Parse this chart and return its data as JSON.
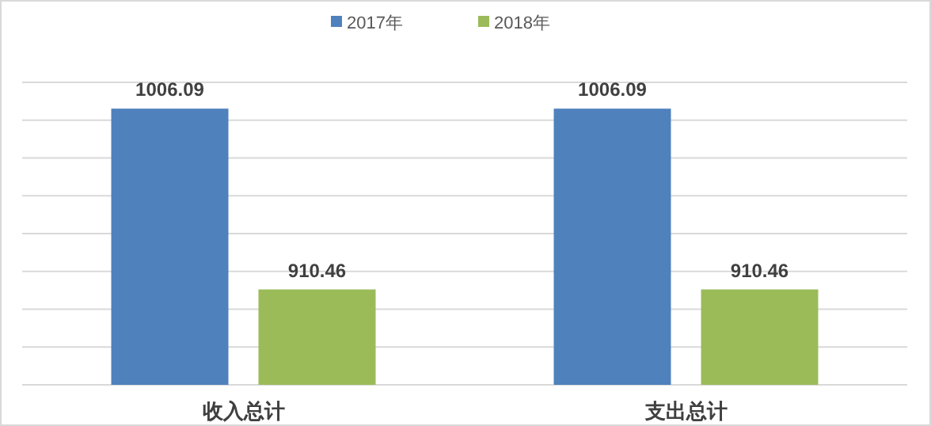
{
  "chart_data": {
    "type": "bar",
    "categories": [
      "收入总计",
      "支出总计"
    ],
    "series": [
      {
        "name": "2017年",
        "color": "#4f81bd",
        "values": [
          1006.09,
          1006.09
        ]
      },
      {
        "name": "2018年",
        "color": "#9bbb59",
        "values": [
          910.46,
          910.46
        ]
      }
    ],
    "ylim": [
      860,
      1020
    ],
    "yticks": [
      {
        "value": 860,
        "label": null
      },
      {
        "value": 880,
        "label": null
      },
      {
        "value": 900,
        "label": null
      },
      {
        "value": 920,
        "label": null
      },
      {
        "value": 940,
        "label": null
      },
      {
        "value": 960,
        "label": null
      },
      {
        "value": 980,
        "label": null
      },
      {
        "value": 1000,
        "label": null
      },
      {
        "value": 1020,
        "label": null
      }
    ],
    "grid": "y",
    "legend": "top",
    "data_labels": true,
    "tick_labels": "x"
  }
}
